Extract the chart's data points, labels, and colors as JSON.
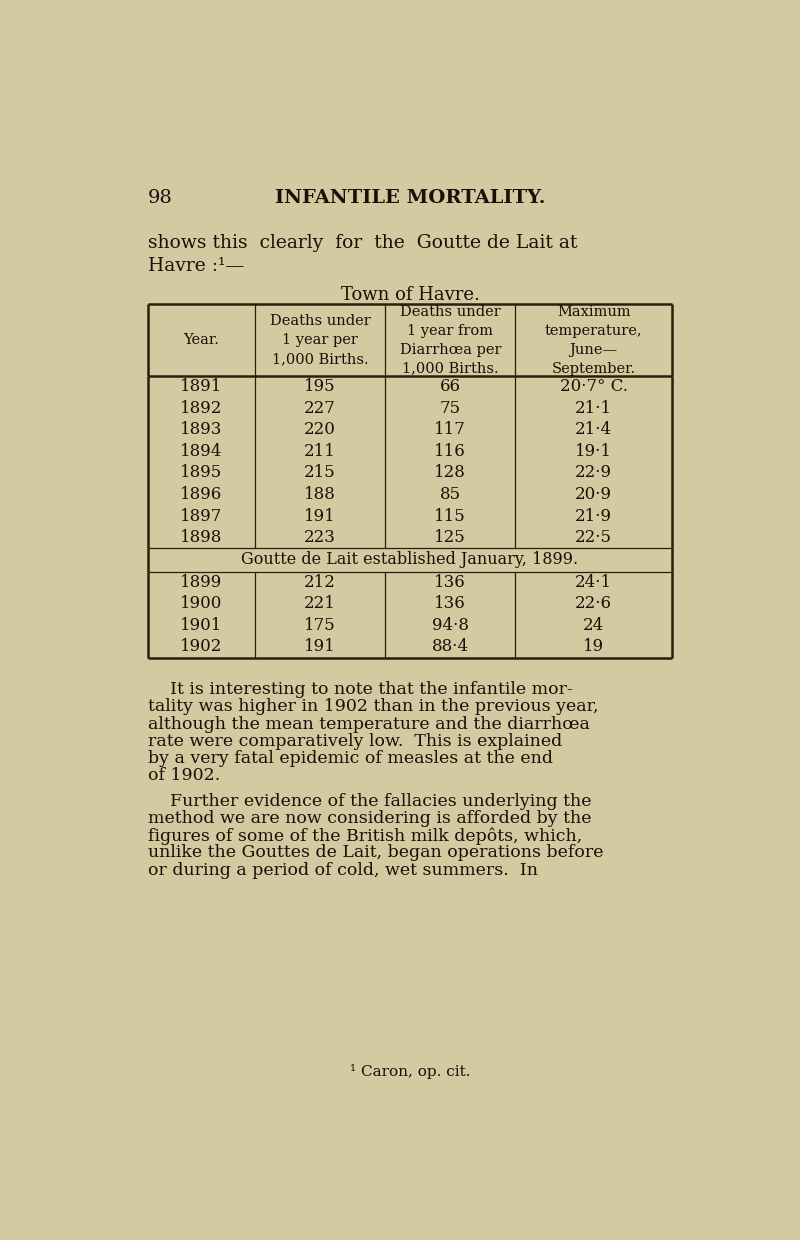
{
  "page_number": "98",
  "chapter_title": "INFANTILE MORTALITY.",
  "bg_color": "#d4c9a0",
  "text_color": "#1a1008",
  "line_color": "#2a1f0a",
  "intro_lines": [
    "shows this  clearly  for  the  Goutte de Lait at",
    "Havre :¹—"
  ],
  "table_title": "Town of Havre.",
  "col_headers": [
    "Year.",
    "Deaths under\n1 year per\n1,000 Births.",
    "Deaths under\n1 year from\nDiarrhœa per\n1,000 Births.",
    "Maximum\ntemperature,\nJune—\nSeptember."
  ],
  "rows_before": [
    [
      "1891",
      "195",
      "66",
      "20·7° C."
    ],
    [
      "1892",
      "227",
      "75",
      "21·1"
    ],
    [
      "1893",
      "220",
      "117",
      "21·4"
    ],
    [
      "1894",
      "211",
      "116",
      "19·1"
    ],
    [
      "1895",
      "215",
      "128",
      "22·9"
    ],
    [
      "1896",
      "188",
      "85",
      "20·9"
    ],
    [
      "1897",
      "191",
      "115",
      "21·9"
    ],
    [
      "1898",
      "223",
      "125",
      "22·5"
    ]
  ],
  "mid_note": "Goutte de Lait established January, 1899.",
  "rows_after": [
    [
      "1899",
      "212",
      "136",
      "24·1"
    ],
    [
      "1900",
      "221",
      "136",
      "22·6"
    ],
    [
      "1901",
      "175",
      "94·8",
      "24"
    ],
    [
      "1902",
      "191",
      "88·4",
      "19"
    ]
  ],
  "body_paragraphs": [
    "    It is interesting to note that the infantile mor-\ntality was higher in 1902 than in the previous year,\nalthough the mean temperature and the diarrhœa\nrate were comparatively low.  This is explained\nby a very fatal epidemic of measles at the end\nof 1902.",
    "    Further evidence of the fallacies underlying the\nmethod we are now considering is afforded by the\nfigures of some of the British milk depôts, which,\nunlike the Gouttes de Lait, began operations before\nor during a period of cold, wet summers.  In"
  ],
  "footnote": "¹ Caron, op. cit."
}
